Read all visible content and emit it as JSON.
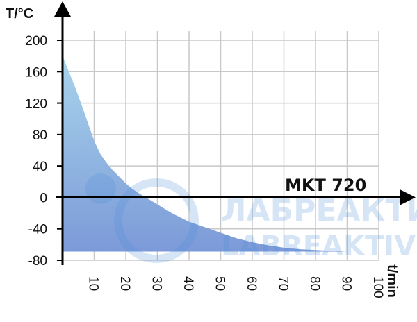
{
  "chart_data": {
    "type": "area",
    "title": "",
    "xlabel": "t/min",
    "ylabel": "T/°C",
    "xlim": [
      0,
      100
    ],
    "ylim": [
      -80,
      200
    ],
    "x_ticks": [
      10,
      20,
      30,
      40,
      50,
      60,
      70,
      80,
      90,
      100
    ],
    "y_ticks": [
      -80,
      -40,
      0,
      40,
      80,
      120,
      160,
      200
    ],
    "grid": true,
    "series": [
      {
        "name": "MKT 720",
        "x": [
          0,
          2,
          4,
          6,
          8,
          10,
          12,
          15,
          18,
          20,
          22,
          25,
          28,
          30,
          35,
          40,
          45,
          50,
          55,
          60,
          65,
          70,
          75,
          80,
          85,
          90
        ],
        "y": [
          180,
          160,
          140,
          118,
          95,
          72,
          55,
          38,
          26,
          18,
          11,
          3,
          -4,
          -9,
          -21,
          -31,
          -38,
          -45,
          -52,
          -57,
          -61,
          -64,
          -66,
          -67,
          -68,
          -69
        ]
      }
    ],
    "baseline": -69,
    "colors": {
      "area_top": "#a8d4ec",
      "area_bottom": "#7c9ad8",
      "grid": "#c8c8c8",
      "axis": "#000000"
    }
  },
  "watermark": {
    "line1": "ЛАБРЕАКТИВ",
    "line2": "LABREAKTIV"
  }
}
